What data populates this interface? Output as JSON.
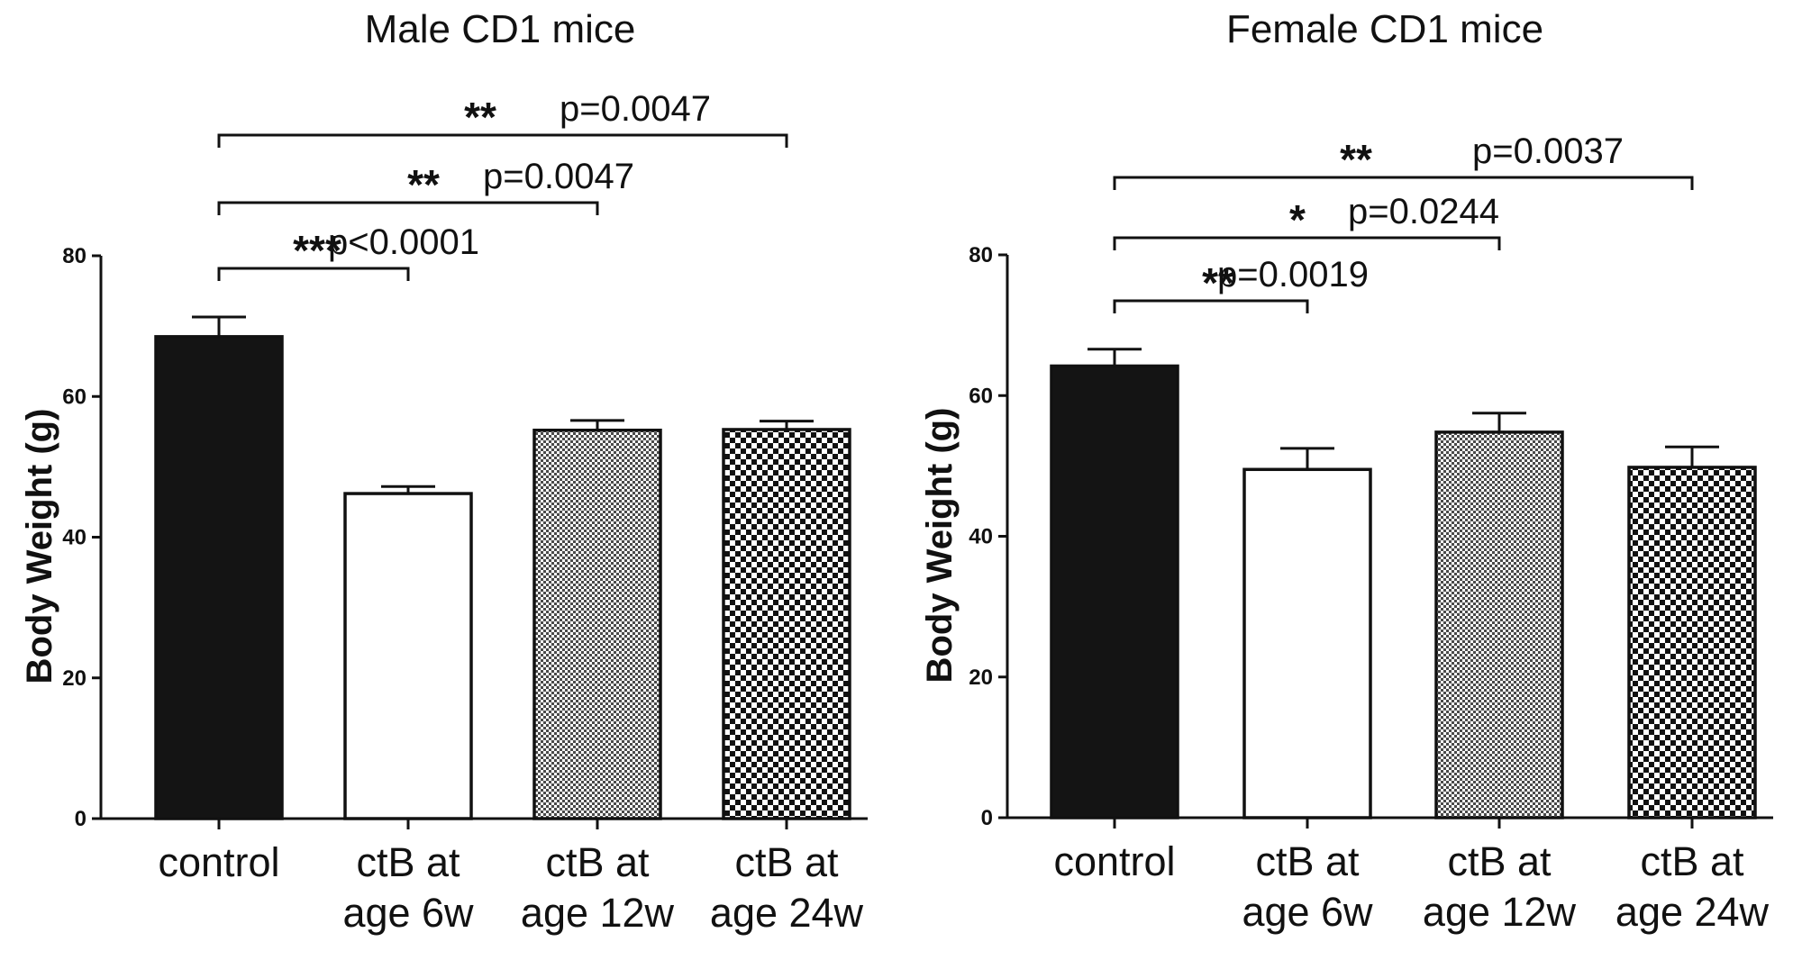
{
  "chart_data": [
    {
      "type": "bar",
      "title": "Male CD1 mice",
      "ylabel": "Body Weight (g)",
      "xlabel": "",
      "ylim": [
        0,
        80
      ],
      "yticks": [
        "0",
        "20",
        "40",
        "60",
        "80"
      ],
      "categories": [
        [
          "control"
        ],
        [
          "ctB at",
          "age 6w"
        ],
        [
          "ctB at",
          "age 12w"
        ],
        [
          "ctB at",
          "age 24w"
        ]
      ],
      "values": [
        68.5,
        46.2,
        55.2,
        55.3
      ],
      "errors": [
        2.8,
        1.0,
        1.4,
        1.2
      ],
      "fills": [
        "solid-black",
        "white",
        "fine-grey-check",
        "coarse-checker"
      ],
      "grid": false,
      "comparisons": [
        {
          "from": 0,
          "to": 1,
          "stars": "***",
          "p": "p<0.0001"
        },
        {
          "from": 0,
          "to": 2,
          "stars": "**",
          "p": "p=0.0047"
        },
        {
          "from": 0,
          "to": 3,
          "stars": "**",
          "p": "p=0.0047"
        }
      ]
    },
    {
      "type": "bar",
      "title": "Female CD1 mice",
      "ylabel": "Body Weight (g)",
      "xlabel": "",
      "ylim": [
        0,
        80
      ],
      "yticks": [
        "0",
        "20",
        "40",
        "60",
        "80"
      ],
      "categories": [
        [
          "control"
        ],
        [
          "ctB at",
          "age 6w"
        ],
        [
          "ctB at",
          "age 12w"
        ],
        [
          "ctB at",
          "age 24w"
        ]
      ],
      "values": [
        64.2,
        49.5,
        54.8,
        49.8
      ],
      "errors": [
        2.4,
        3.0,
        2.7,
        2.9
      ],
      "fills": [
        "solid-black",
        "white",
        "fine-grey-check",
        "coarse-checker"
      ],
      "grid": false,
      "comparisons": [
        {
          "from": 0,
          "to": 1,
          "stars": "**",
          "p": "p=0.0019"
        },
        {
          "from": 0,
          "to": 2,
          "stars": "*",
          "p": "p=0.0244"
        },
        {
          "from": 0,
          "to": 3,
          "stars": "**",
          "p": "p=0.0037"
        }
      ]
    }
  ]
}
